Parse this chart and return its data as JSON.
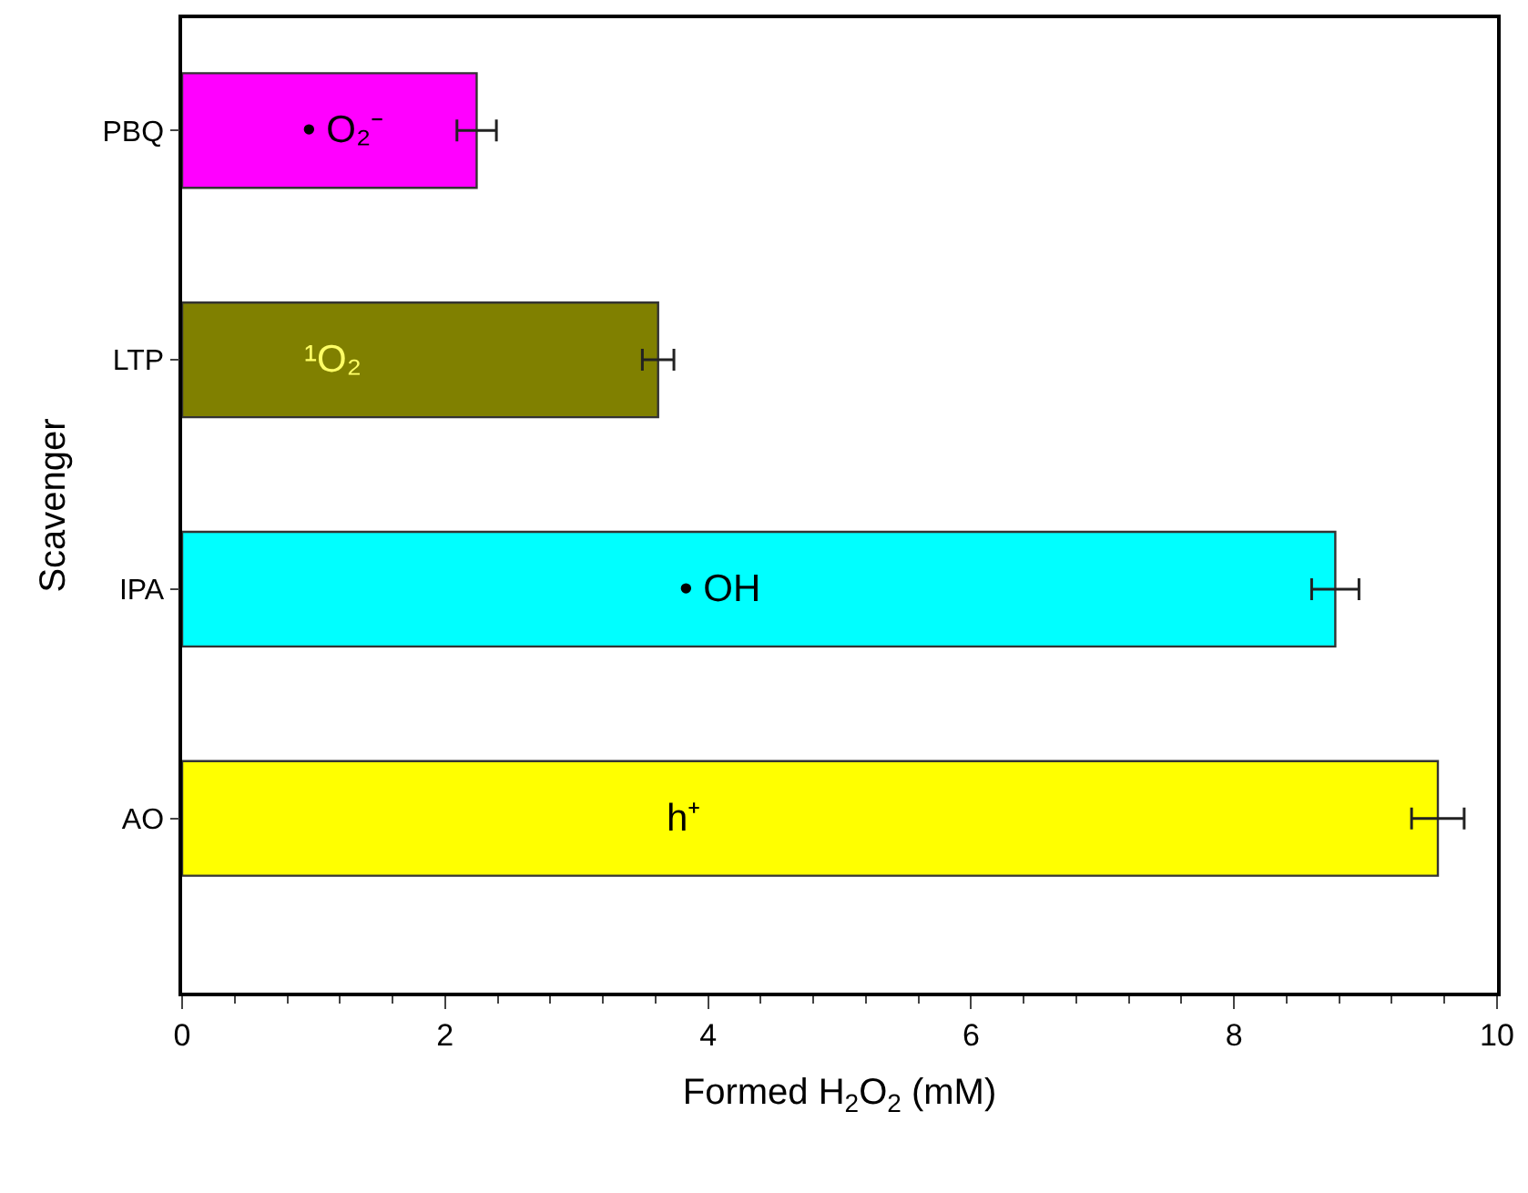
{
  "chart_data": {
    "type": "bar",
    "orientation": "horizontal",
    "xlabel": "Formed H$_{2}$O$_{2}$ (mM)",
    "ylabel": "Scavenger",
    "categories": [
      "PBQ",
      "LTP",
      "IPA",
      "AO"
    ],
    "values": [
      2.24,
      3.62,
      8.77,
      9.55
    ],
    "errors": [
      0.15,
      0.12,
      0.18,
      0.2
    ],
    "colors": [
      "#ff00ff",
      "#808000",
      "#00ffff",
      "#ffff00"
    ],
    "xlim": [
      0,
      10
    ],
    "xticks": [
      0,
      2,
      4,
      6,
      8,
      10
    ],
    "annotations": [
      "• O₂⁻",
      "¹O₂",
      "• OH",
      "h⁺"
    ]
  }
}
